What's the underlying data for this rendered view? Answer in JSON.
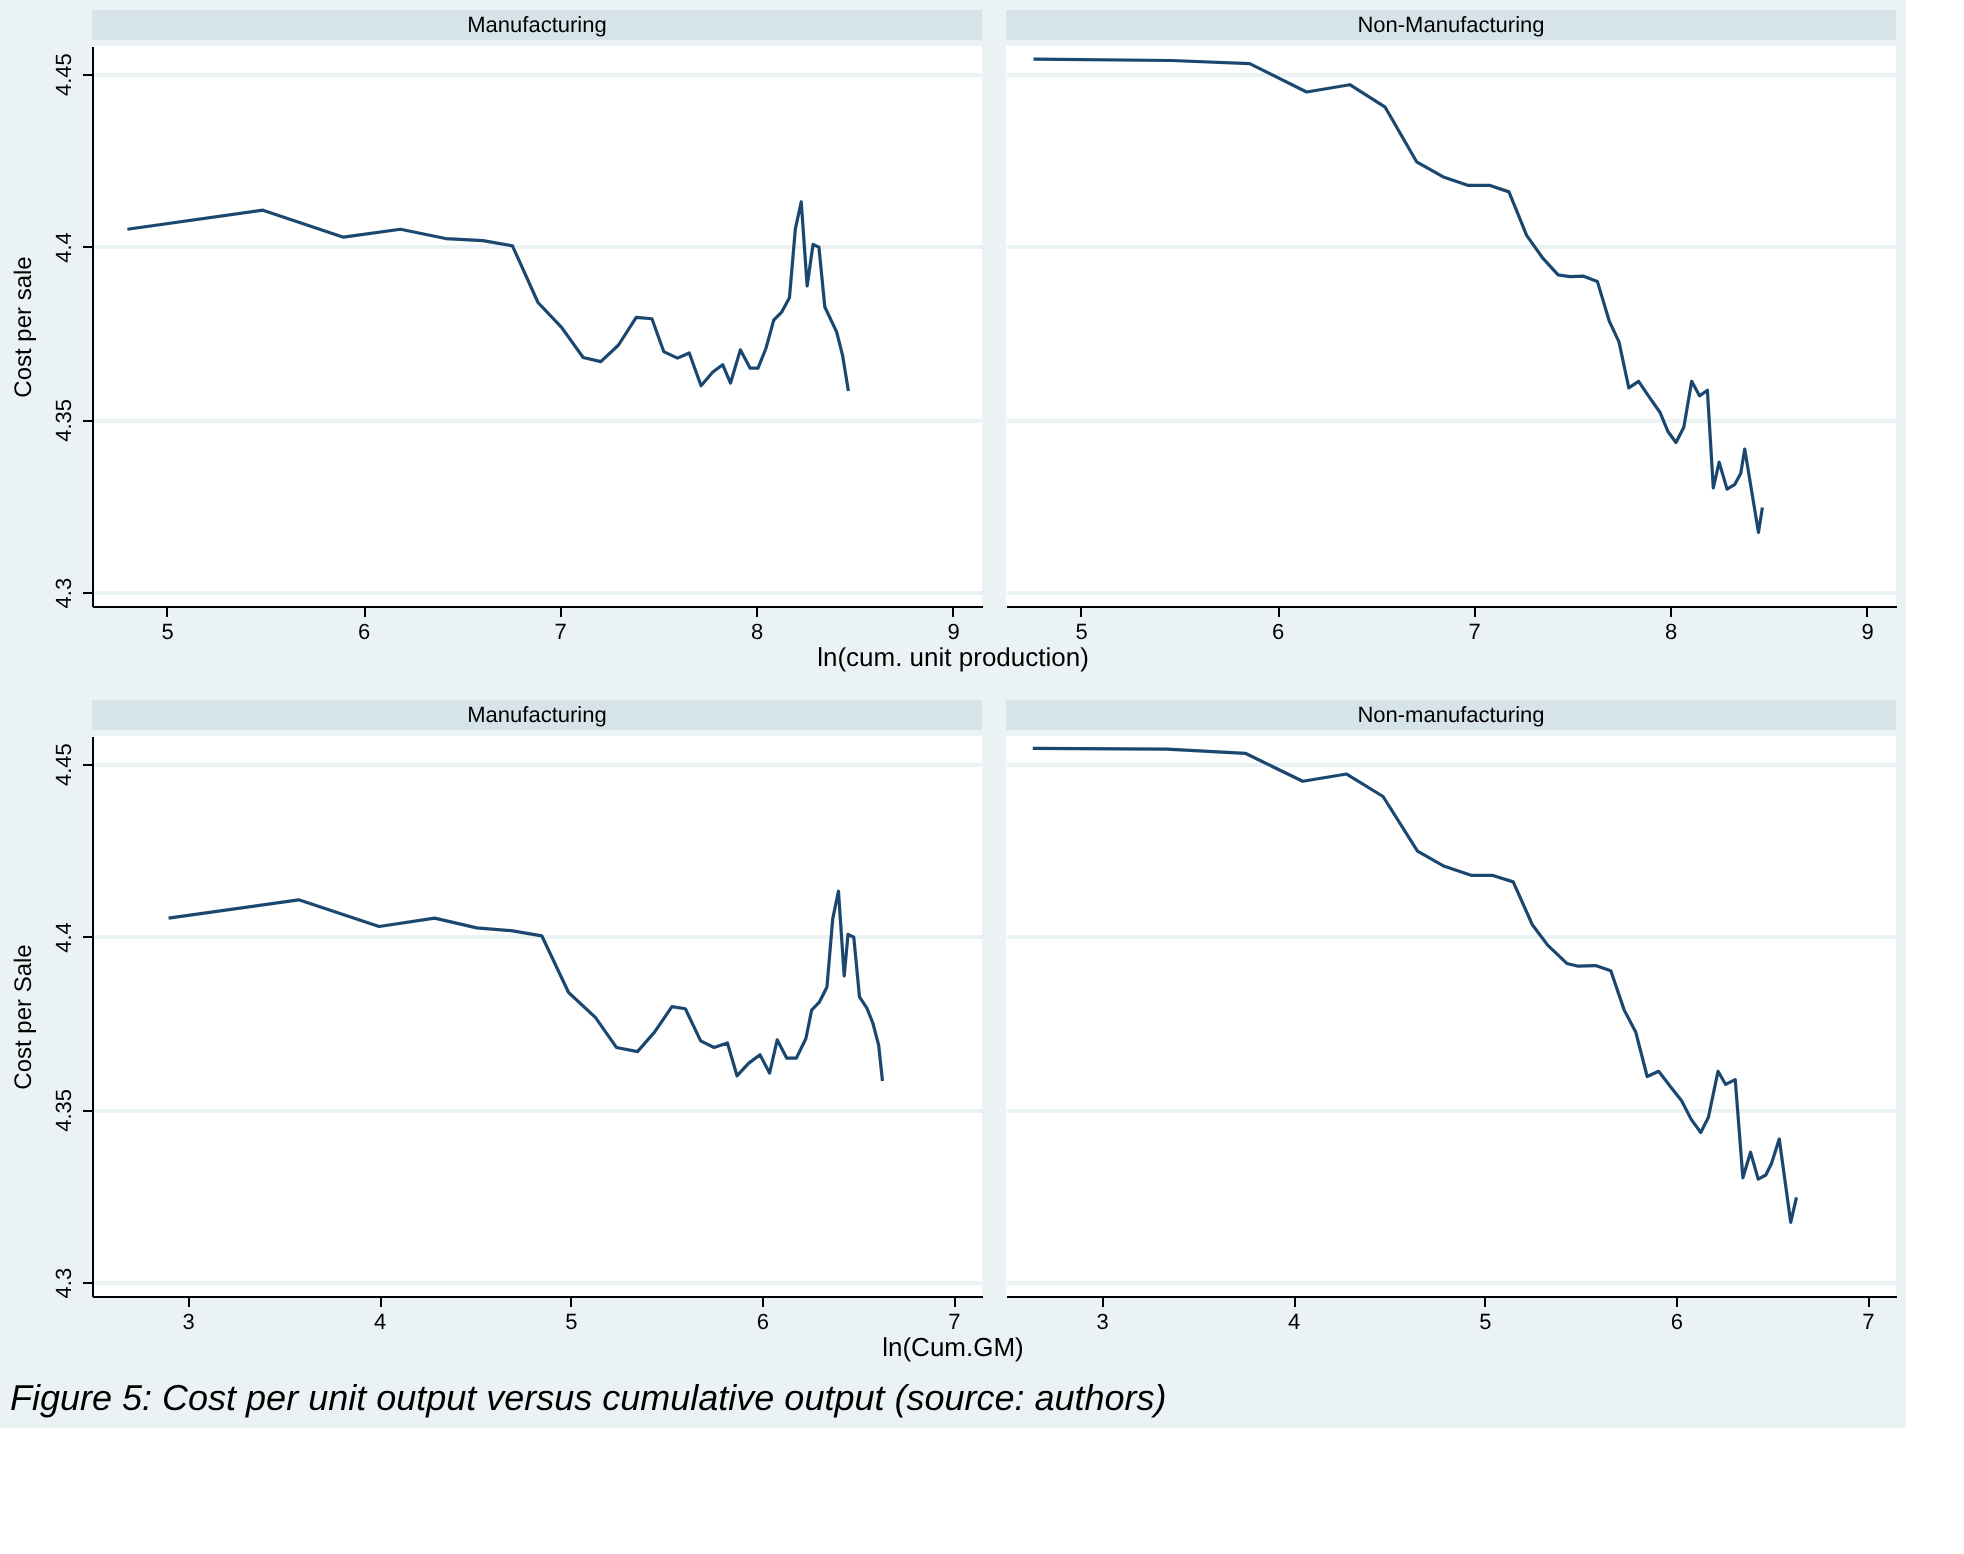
{
  "chart_data": [
    {
      "type": "line",
      "title": "Manufacturing",
      "ylabel": "Cost per sale",
      "xlabel": "ln(cum. unit production)",
      "color": "#1a476f",
      "grid": "y",
      "xlim": [
        4.62,
        9.15
      ],
      "xticks": [
        5,
        6,
        7,
        8,
        9
      ],
      "ylim": [
        4.296,
        4.458
      ],
      "yticks": [
        4.3,
        4.35,
        4.4,
        4.45
      ],
      "x": [
        4.8,
        5.49,
        5.9,
        6.19,
        6.42,
        6.61,
        6.76,
        6.89,
        7.01,
        7.12,
        7.21,
        7.3,
        7.39,
        7.47,
        7.53,
        7.6,
        7.66,
        7.72,
        7.78,
        7.83,
        7.87,
        7.92,
        7.97,
        8.01,
        8.05,
        8.09,
        8.13,
        8.17,
        8.2,
        8.23,
        8.26,
        8.29,
        8.32,
        8.35,
        8.41,
        8.44,
        8.47
      ],
      "values": [
        4.405,
        4.4105,
        4.4027,
        4.405,
        4.4023,
        4.4017,
        4.4002,
        4.3838,
        4.3766,
        4.3679,
        4.3667,
        4.3715,
        4.3795,
        4.3791,
        4.3696,
        4.3677,
        4.3692,
        4.3597,
        4.3637,
        4.3658,
        4.3605,
        4.3701,
        4.3648,
        4.3648,
        4.3705,
        4.3787,
        4.381,
        4.3852,
        4.4051,
        4.4129,
        4.3886,
        4.4006,
        4.3998,
        4.3825,
        4.3753,
        4.3686,
        4.3582
      ]
    },
    {
      "type": "line",
      "title": "Non-Manufacturing",
      "color": "#1a476f",
      "grid": "y",
      "tick_labels": "x",
      "xlim": [
        4.62,
        9.15
      ],
      "xticks": [
        5,
        6,
        7,
        8,
        9
      ],
      "ylim": [
        4.296,
        4.458
      ],
      "yticks": [
        4.3,
        4.35,
        4.4,
        4.45
      ],
      "x": [
        4.76,
        5.46,
        5.86,
        6.15,
        6.37,
        6.55,
        6.71,
        6.85,
        6.97,
        7.08,
        7.18,
        7.27,
        7.35,
        7.43,
        7.49,
        7.56,
        7.63,
        7.69,
        7.74,
        7.79,
        7.84,
        7.89,
        7.95,
        7.99,
        8.03,
        8.07,
        8.11,
        8.15,
        8.19,
        8.22,
        8.25,
        8.29,
        8.33,
        8.36,
        8.38,
        8.45,
        8.47
      ],
      "values": [
        4.4542,
        4.4538,
        4.4529,
        4.4447,
        4.4468,
        4.4403,
        4.4245,
        4.42,
        4.4177,
        4.4177,
        4.4158,
        4.4032,
        4.3968,
        4.3918,
        4.3913,
        4.3914,
        4.3899,
        4.3785,
        4.3724,
        4.3591,
        4.361,
        4.3568,
        4.3519,
        4.3464,
        4.3433,
        4.3477,
        4.361,
        4.3568,
        4.3584,
        4.3302,
        4.3376,
        4.3298,
        4.3312,
        4.3344,
        4.3414,
        4.3173,
        4.3245
      ]
    },
    {
      "type": "line",
      "title": "Manufacturing",
      "ylabel": "Cost per Sale",
      "xlabel": "ln(Cum.GM)",
      "color": "#1a476f",
      "grid": "y",
      "xlim": [
        2.5,
        7.15
      ],
      "xticks": [
        3,
        4,
        5,
        6,
        7
      ],
      "ylim": [
        4.296,
        4.458
      ],
      "yticks": [
        4.3,
        4.35,
        4.4,
        4.45
      ],
      "x": [
        2.9,
        3.58,
        4.0,
        4.29,
        4.51,
        4.69,
        4.85,
        4.99,
        5.13,
        5.24,
        5.35,
        5.44,
        5.53,
        5.6,
        5.68,
        5.75,
        5.82,
        5.87,
        5.93,
        5.99,
        6.04,
        6.08,
        6.13,
        6.18,
        6.23,
        6.26,
        6.3,
        6.34,
        6.37,
        6.4,
        6.43,
        6.45,
        6.48,
        6.51,
        6.55,
        6.58,
        6.61,
        6.63
      ],
      "values": [
        4.4053,
        4.4106,
        4.4029,
        4.4053,
        4.4025,
        4.4017,
        4.4002,
        4.3838,
        4.3766,
        4.3679,
        4.3667,
        4.3724,
        4.3797,
        4.3791,
        4.3698,
        4.3679,
        4.3692,
        4.3597,
        4.3633,
        4.3658,
        4.3605,
        4.3701,
        4.3648,
        4.3648,
        4.3705,
        4.3787,
        4.381,
        4.3854,
        4.4051,
        4.4131,
        4.3886,
        4.4006,
        4.3998,
        4.3825,
        4.3791,
        4.3749,
        4.3686,
        4.3582
      ]
    },
    {
      "type": "line",
      "title": "Non-manufacturing",
      "color": "#1a476f",
      "grid": "y",
      "tick_labels": "x",
      "xlim": [
        2.5,
        7.15
      ],
      "xticks": [
        3,
        4,
        5,
        6,
        7
      ],
      "ylim": [
        4.296,
        4.458
      ],
      "yticks": [
        4.3,
        4.35,
        4.4,
        4.45
      ],
      "x": [
        2.64,
        3.34,
        3.75,
        4.05,
        4.28,
        4.47,
        4.65,
        4.79,
        4.93,
        5.04,
        5.15,
        5.25,
        5.33,
        5.43,
        5.49,
        5.58,
        5.66,
        5.73,
        5.79,
        5.85,
        5.91,
        5.97,
        6.03,
        6.08,
        6.13,
        6.17,
        6.22,
        6.26,
        6.31,
        6.35,
        6.39,
        6.43,
        6.47,
        6.5,
        6.54,
        6.6,
        6.63
      ],
      "values": [
        4.4544,
        4.4542,
        4.453,
        4.4449,
        4.447,
        4.4405,
        4.4247,
        4.4203,
        4.4177,
        4.4177,
        4.4158,
        4.4034,
        4.3975,
        4.3922,
        4.3914,
        4.3916,
        4.3901,
        4.3787,
        4.3724,
        4.3595,
        4.361,
        4.3567,
        4.3525,
        4.3471,
        4.3433,
        4.3477,
        4.361,
        4.3572,
        4.3586,
        4.3302,
        4.3376,
        4.3298,
        4.331,
        4.3344,
        4.3414,
        4.3173,
        4.3245
      ],
      "annotations": [
        "Figure 5: Cost per unit output versus cumulative output (source: authors)"
      ]
    }
  ]
}
